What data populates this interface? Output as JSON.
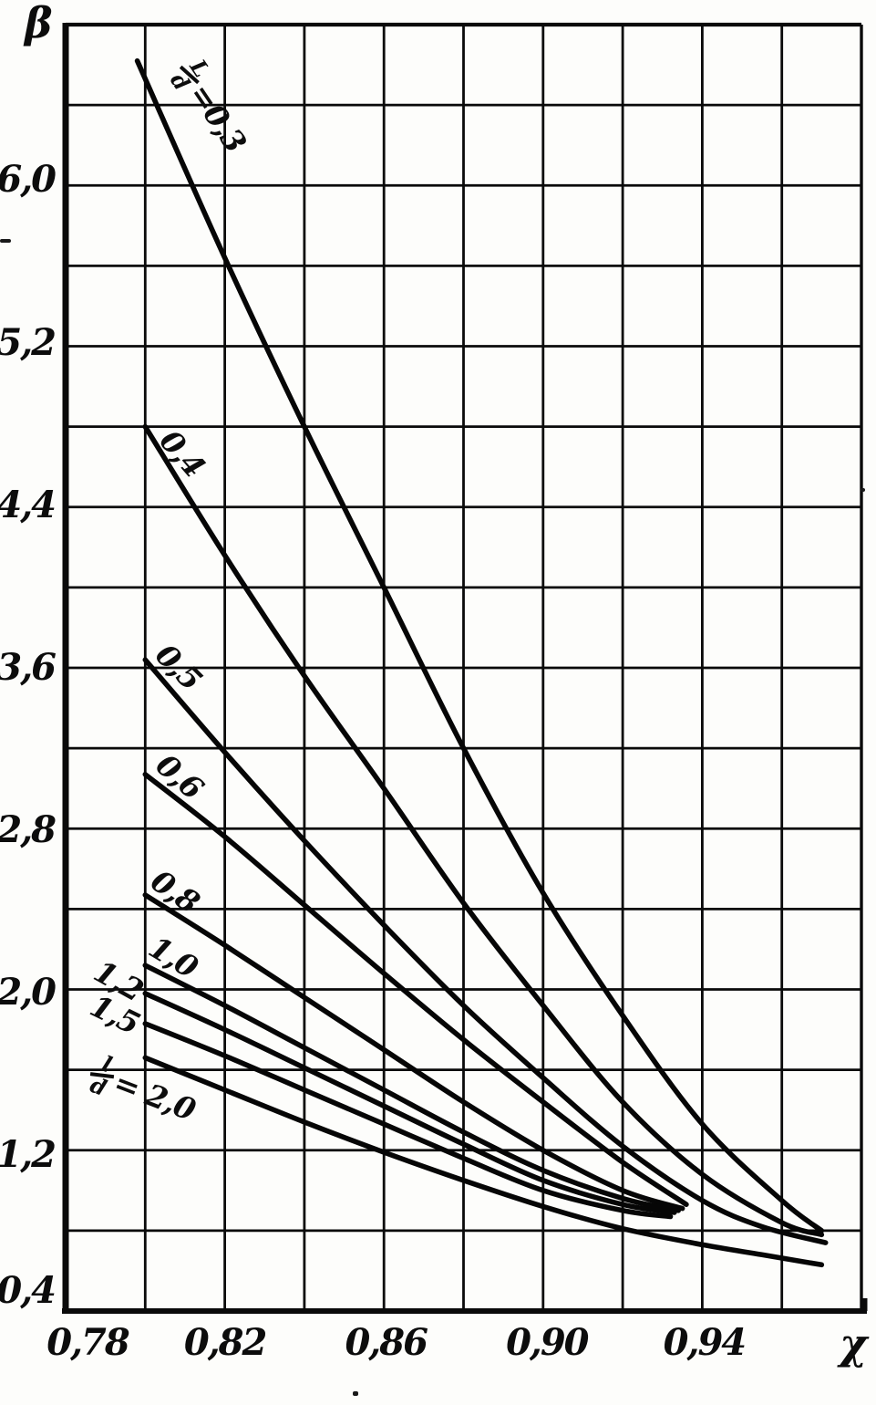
{
  "figure": {
    "background": "#fdfdfb",
    "ink": "#0a0a0a"
  },
  "chart_data": {
    "type": "line",
    "title": "",
    "xlabel": "χ",
    "ylabel": "β",
    "x_range": [
      0.78,
      0.98
    ],
    "y_range": [
      0.4,
      6.8
    ],
    "x_grid_step": 0.02,
    "y_grid_step": 0.4,
    "grid": true,
    "legend_position": "labels-on-curves",
    "decimal_separator": ",",
    "x_ticks": [
      {
        "label": "0,78",
        "value": 0.78
      },
      {
        "label": "0,82",
        "value": 0.82
      },
      {
        "label": "0,86",
        "value": 0.86
      },
      {
        "label": "0,90",
        "value": 0.9
      },
      {
        "label": "0,94",
        "value": 0.94
      }
    ],
    "y_ticks": [
      {
        "label": "6,0",
        "value": 6.0
      },
      {
        "label": "5,2",
        "value": 5.2
      },
      {
        "label": "4,4",
        "value": 4.4
      },
      {
        "label": "3,6",
        "value": 3.6
      },
      {
        "label": "2,8",
        "value": 2.8
      },
      {
        "label": "2,0",
        "value": 2.0
      },
      {
        "label": "1,2",
        "value": 1.2
      },
      {
        "label": "0,4",
        "value": 0.4
      }
    ],
    "series_parameter": "L/d",
    "series": [
      {
        "name": "L/d = 0,3",
        "ld": 0.3,
        "curve_label": "=0,3",
        "fraction": {
          "num": "L",
          "den": "d"
        },
        "points": [
          [
            0.798,
            6.62
          ],
          [
            0.82,
            5.64
          ],
          [
            0.84,
            4.8
          ],
          [
            0.86,
            4.0
          ],
          [
            0.88,
            3.2
          ],
          [
            0.9,
            2.48
          ],
          [
            0.92,
            1.87
          ],
          [
            0.94,
            1.33
          ],
          [
            0.96,
            0.95
          ],
          [
            0.97,
            0.8
          ]
        ]
      },
      {
        "name": "L/d = 0,4",
        "ld": 0.4,
        "curve_label": "0,4",
        "points": [
          [
            0.8,
            4.8
          ],
          [
            0.82,
            4.16
          ],
          [
            0.84,
            3.56
          ],
          [
            0.86,
            3.0
          ],
          [
            0.88,
            2.43
          ],
          [
            0.9,
            1.92
          ],
          [
            0.92,
            1.44
          ],
          [
            0.94,
            1.08
          ],
          [
            0.96,
            0.84
          ],
          [
            0.97,
            0.78
          ]
        ]
      },
      {
        "name": "L/d = 0,5",
        "ld": 0.5,
        "curve_label": "0,5",
        "points": [
          [
            0.8,
            3.64
          ],
          [
            0.82,
            3.18
          ],
          [
            0.84,
            2.74
          ],
          [
            0.86,
            2.32
          ],
          [
            0.88,
            1.92
          ],
          [
            0.9,
            1.56
          ],
          [
            0.92,
            1.22
          ],
          [
            0.94,
            0.95
          ],
          [
            0.955,
            0.82
          ],
          [
            0.971,
            0.74
          ]
        ]
      },
      {
        "name": "L/d = 0,6",
        "ld": 0.6,
        "curve_label": "0,6",
        "points": [
          [
            0.8,
            3.07
          ],
          [
            0.82,
            2.76
          ],
          [
            0.84,
            2.42
          ],
          [
            0.86,
            2.08
          ],
          [
            0.88,
            1.75
          ],
          [
            0.9,
            1.44
          ],
          [
            0.92,
            1.14
          ],
          [
            0.936,
            0.93
          ]
        ]
      },
      {
        "name": "L/d = 0,8",
        "ld": 0.8,
        "curve_label": "0,8",
        "points": [
          [
            0.8,
            2.47
          ],
          [
            0.82,
            2.22
          ],
          [
            0.84,
            1.96
          ],
          [
            0.86,
            1.7
          ],
          [
            0.88,
            1.44
          ],
          [
            0.9,
            1.2
          ],
          [
            0.92,
            1.0
          ],
          [
            0.935,
            0.91
          ]
        ]
      },
      {
        "name": "L/d = 1,0",
        "ld": 1.0,
        "curve_label": "1,0",
        "points": [
          [
            0.8,
            2.12
          ],
          [
            0.82,
            1.92
          ],
          [
            0.84,
            1.71
          ],
          [
            0.86,
            1.5
          ],
          [
            0.88,
            1.29
          ],
          [
            0.9,
            1.1
          ],
          [
            0.92,
            0.96
          ],
          [
            0.934,
            0.9
          ]
        ]
      },
      {
        "name": "L/d = 1,2",
        "ld": 1.2,
        "curve_label": "1,2",
        "points": [
          [
            0.8,
            1.98
          ],
          [
            0.82,
            1.8
          ],
          [
            0.84,
            1.61
          ],
          [
            0.86,
            1.42
          ],
          [
            0.88,
            1.23
          ],
          [
            0.9,
            1.05
          ],
          [
            0.92,
            0.93
          ],
          [
            0.933,
            0.89
          ]
        ]
      },
      {
        "name": "L/d = 1,5",
        "ld": 1.5,
        "curve_label": "1,5",
        "points": [
          [
            0.8,
            1.83
          ],
          [
            0.82,
            1.67
          ],
          [
            0.84,
            1.5
          ],
          [
            0.86,
            1.33
          ],
          [
            0.88,
            1.16
          ],
          [
            0.9,
            1.0
          ],
          [
            0.92,
            0.9
          ],
          [
            0.932,
            0.87
          ]
        ]
      },
      {
        "name": "L/d = 2,0",
        "ld": 2.0,
        "curve_label": "= 2,0",
        "fraction": {
          "num": "l",
          "den": "d"
        },
        "points": [
          [
            0.8,
            1.66
          ],
          [
            0.82,
            1.5
          ],
          [
            0.84,
            1.34
          ],
          [
            0.86,
            1.19
          ],
          [
            0.88,
            1.05
          ],
          [
            0.9,
            0.92
          ],
          [
            0.92,
            0.81
          ],
          [
            0.94,
            0.73
          ],
          [
            0.955,
            0.68
          ],
          [
            0.97,
            0.63
          ]
        ]
      }
    ]
  }
}
